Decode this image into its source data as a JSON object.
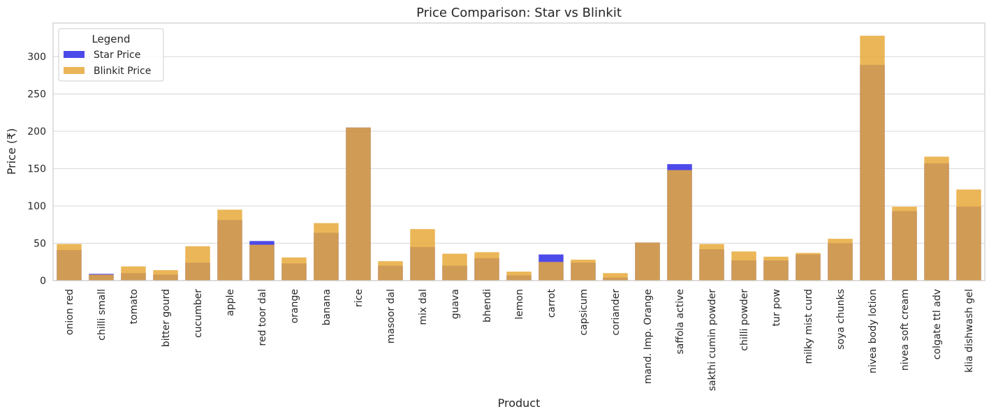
{
  "chart_data": {
    "type": "bar",
    "title": "Price Comparison: Star vs Blinkit",
    "xlabel": "Product",
    "ylabel": "Price (₹)",
    "ylim": [
      0,
      345
    ],
    "yticks": [
      0,
      50,
      100,
      150,
      200,
      250,
      300
    ],
    "grid": true,
    "legend": {
      "title": "Legend",
      "position": "top-left"
    },
    "categories": [
      "onion red",
      "chilli small",
      "tomato",
      "bitter gourd",
      "cucumber",
      "apple",
      "red toor dal",
      "orange",
      "banana",
      "rice",
      "masoor dal",
      "mix dal",
      "guava",
      "bhendi",
      "lemon",
      "carrot",
      "capsicum",
      "coriander",
      "mand. Imp. Orange",
      "saffola active",
      "sakthi cumin powder",
      "chilli powder",
      "tur pow",
      "milky mist curd",
      "soya chunks",
      "nivea body lotion",
      "nivea soft cream",
      "colgate ttl adv",
      "klia dishwash gel"
    ],
    "series": [
      {
        "name": "Star Price",
        "color": "#3a36e8",
        "values": [
          41,
          9,
          10,
          8,
          24,
          81,
          53,
          23,
          64,
          205,
          20,
          45,
          20,
          30,
          7,
          35,
          24,
          4,
          51,
          156,
          42,
          27,
          27,
          35,
          50,
          289,
          93,
          157,
          99
        ]
      },
      {
        "name": "Blinkit Price",
        "color": "#e8a93a",
        "values": [
          49,
          8,
          19,
          14,
          46,
          95,
          48,
          31,
          77,
          205,
          26,
          69,
          36,
          38,
          12,
          25,
          28,
          10,
          51,
          148,
          49,
          39,
          32,
          37,
          56,
          328,
          99,
          166,
          122
        ]
      }
    ]
  }
}
